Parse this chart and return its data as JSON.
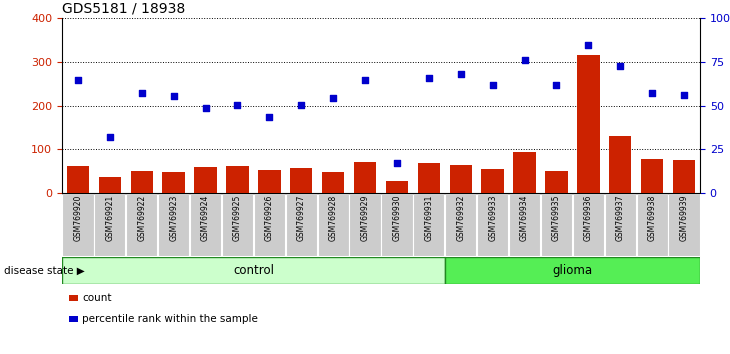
{
  "title": "GDS5181 / 18938",
  "samples": [
    "GSM769920",
    "GSM769921",
    "GSM769922",
    "GSM769923",
    "GSM769924",
    "GSM769925",
    "GSM769926",
    "GSM769927",
    "GSM769928",
    "GSM769929",
    "GSM769930",
    "GSM769931",
    "GSM769932",
    "GSM769933",
    "GSM769934",
    "GSM769935",
    "GSM769936",
    "GSM769937",
    "GSM769938",
    "GSM769939"
  ],
  "counts": [
    62,
    37,
    50,
    47,
    60,
    62,
    52,
    58,
    48,
    72,
    28,
    68,
    65,
    55,
    93,
    50,
    315,
    130,
    78,
    75
  ],
  "percentiles": [
    258,
    128,
    228,
    222,
    194,
    202,
    173,
    202,
    217,
    258,
    68,
    263,
    272,
    248,
    305,
    248,
    338,
    290,
    228,
    225
  ],
  "control_count": 12,
  "glioma_count": 8,
  "left_ylim": [
    0,
    400
  ],
  "right_ylim": [
    0,
    100
  ],
  "left_yticks": [
    0,
    100,
    200,
    300,
    400
  ],
  "right_yticks": [
    0,
    25,
    50,
    75,
    100
  ],
  "right_yticklabels": [
    "0",
    "25",
    "50",
    "75",
    "100%"
  ],
  "bar_color": "#CC2200",
  "scatter_color": "#0000CC",
  "control_color": "#CCFFCC",
  "glioma_color": "#55EE55",
  "xticklabel_bg": "#CCCCCC",
  "label_count": "count",
  "label_percentile": "percentile rank within the sample",
  "disease_state_label": "disease state",
  "control_label": "control",
  "glioma_label": "glioma"
}
